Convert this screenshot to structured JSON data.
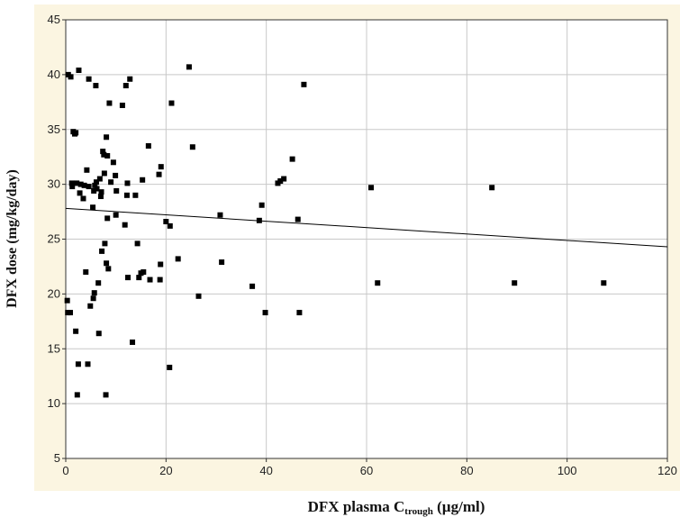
{
  "chart_data": {
    "type": "scatter",
    "title": "",
    "xlabel": {
      "main": "DFX plasma C",
      "subscript": "trough",
      "suffix": " (µg/ml)"
    },
    "ylabel": "DFX dose (mg/kg/day)",
    "xlim": [
      0,
      120
    ],
    "ylim": [
      5,
      45
    ],
    "xticks": [
      0,
      20,
      40,
      60,
      80,
      100,
      120
    ],
    "yticks": [
      5,
      10,
      15,
      20,
      25,
      30,
      35,
      40,
      45
    ],
    "grid": true,
    "legend": "none",
    "marker_color": "#000000",
    "line_color": "#000000",
    "background_color": "#fbf5e1",
    "trend_line": {
      "x": [
        0,
        120
      ],
      "y": [
        27.8,
        24.3
      ]
    },
    "points": [
      {
        "x": 0.3,
        "y": 19.4
      },
      {
        "x": 0.4,
        "y": 18.3
      },
      {
        "x": 0.5,
        "y": 40.0
      },
      {
        "x": 0.9,
        "y": 18.3
      },
      {
        "x": 1.0,
        "y": 39.8
      },
      {
        "x": 1.2,
        "y": 30.1
      },
      {
        "x": 1.3,
        "y": 29.8
      },
      {
        "x": 1.5,
        "y": 34.8
      },
      {
        "x": 1.8,
        "y": 34.6
      },
      {
        "x": 2.0,
        "y": 34.7
      },
      {
        "x": 2.0,
        "y": 16.6
      },
      {
        "x": 2.2,
        "y": 30.1
      },
      {
        "x": 2.3,
        "y": 10.8
      },
      {
        "x": 2.5,
        "y": 13.6
      },
      {
        "x": 2.6,
        "y": 40.4
      },
      {
        "x": 2.8,
        "y": 29.2
      },
      {
        "x": 3.0,
        "y": 30.0
      },
      {
        "x": 3.5,
        "y": 28.7
      },
      {
        "x": 3.7,
        "y": 29.9
      },
      {
        "x": 4.0,
        "y": 22.0
      },
      {
        "x": 4.2,
        "y": 31.3
      },
      {
        "x": 4.4,
        "y": 13.6
      },
      {
        "x": 4.6,
        "y": 39.6
      },
      {
        "x": 4.6,
        "y": 29.8
      },
      {
        "x": 4.9,
        "y": 18.9
      },
      {
        "x": 5.4,
        "y": 27.9
      },
      {
        "x": 5.5,
        "y": 19.6
      },
      {
        "x": 5.6,
        "y": 29.4
      },
      {
        "x": 5.7,
        "y": 20.1
      },
      {
        "x": 5.8,
        "y": 29.9
      },
      {
        "x": 6.0,
        "y": 39.0
      },
      {
        "x": 6.1,
        "y": 30.2
      },
      {
        "x": 6.2,
        "y": 29.6
      },
      {
        "x": 6.5,
        "y": 21.0
      },
      {
        "x": 6.6,
        "y": 16.4
      },
      {
        "x": 6.8,
        "y": 30.5
      },
      {
        "x": 7.0,
        "y": 28.9
      },
      {
        "x": 7.1,
        "y": 29.3
      },
      {
        "x": 7.2,
        "y": 23.9
      },
      {
        "x": 7.4,
        "y": 33.0
      },
      {
        "x": 7.6,
        "y": 32.7
      },
      {
        "x": 7.7,
        "y": 31.0
      },
      {
        "x": 7.8,
        "y": 24.6
      },
      {
        "x": 8.0,
        "y": 10.8
      },
      {
        "x": 8.1,
        "y": 22.8
      },
      {
        "x": 8.1,
        "y": 34.3
      },
      {
        "x": 8.3,
        "y": 26.9
      },
      {
        "x": 8.3,
        "y": 32.6
      },
      {
        "x": 8.5,
        "y": 22.3
      },
      {
        "x": 8.7,
        "y": 37.4
      },
      {
        "x": 9.0,
        "y": 30.2
      },
      {
        "x": 9.5,
        "y": 32.0
      },
      {
        "x": 9.9,
        "y": 30.8
      },
      {
        "x": 10.0,
        "y": 27.2
      },
      {
        "x": 10.1,
        "y": 29.4
      },
      {
        "x": 11.3,
        "y": 37.2
      },
      {
        "x": 11.8,
        "y": 26.3
      },
      {
        "x": 12.0,
        "y": 39.0
      },
      {
        "x": 12.2,
        "y": 29.0
      },
      {
        "x": 12.3,
        "y": 30.1
      },
      {
        "x": 12.4,
        "y": 21.5
      },
      {
        "x": 12.8,
        "y": 39.6
      },
      {
        "x": 13.3,
        "y": 15.6
      },
      {
        "x": 13.9,
        "y": 29.0
      },
      {
        "x": 14.3,
        "y": 24.6
      },
      {
        "x": 14.6,
        "y": 21.5
      },
      {
        "x": 15.0,
        "y": 21.9
      },
      {
        "x": 15.3,
        "y": 30.4
      },
      {
        "x": 15.5,
        "y": 22.0
      },
      {
        "x": 16.5,
        "y": 33.5
      },
      {
        "x": 16.8,
        "y": 21.3
      },
      {
        "x": 18.6,
        "y": 30.9
      },
      {
        "x": 18.8,
        "y": 21.3
      },
      {
        "x": 18.9,
        "y": 22.7
      },
      {
        "x": 19.0,
        "y": 31.6
      },
      {
        "x": 20.0,
        "y": 26.6
      },
      {
        "x": 20.7,
        "y": 13.3
      },
      {
        "x": 20.8,
        "y": 26.2
      },
      {
        "x": 21.1,
        "y": 37.4
      },
      {
        "x": 22.4,
        "y": 23.2
      },
      {
        "x": 24.6,
        "y": 40.7
      },
      {
        "x": 25.3,
        "y": 33.4
      },
      {
        "x": 26.5,
        "y": 19.8
      },
      {
        "x": 30.8,
        "y": 27.2
      },
      {
        "x": 31.1,
        "y": 22.9
      },
      {
        "x": 37.2,
        "y": 20.7
      },
      {
        "x": 38.6,
        "y": 26.7
      },
      {
        "x": 39.1,
        "y": 28.1
      },
      {
        "x": 39.8,
        "y": 18.3
      },
      {
        "x": 42.3,
        "y": 30.1
      },
      {
        "x": 42.8,
        "y": 30.3
      },
      {
        "x": 43.5,
        "y": 30.5
      },
      {
        "x": 45.2,
        "y": 32.3
      },
      {
        "x": 46.3,
        "y": 26.8
      },
      {
        "x": 46.6,
        "y": 18.3
      },
      {
        "x": 47.5,
        "y": 39.1
      },
      {
        "x": 60.9,
        "y": 29.7
      },
      {
        "x": 62.2,
        "y": 21.0
      },
      {
        "x": 85.0,
        "y": 29.7
      },
      {
        "x": 89.5,
        "y": 21.0
      },
      {
        "x": 107.3,
        "y": 21.0
      }
    ]
  }
}
